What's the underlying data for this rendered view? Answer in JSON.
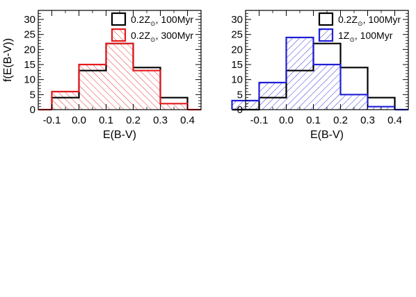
{
  "chart_data": [
    {
      "type": "bar",
      "subtype": "step-histogram",
      "xlabel": "E(B-V)",
      "ylabel": "f(E(B-V))",
      "xlim": [
        -0.15,
        0.45
      ],
      "ylim": [
        0,
        33
      ],
      "x_ticks": [
        "-0.1",
        "0.0",
        "0.1",
        "0.2",
        "0.3",
        "0.4"
      ],
      "y_ticks": [
        "0",
        "5",
        "10",
        "15",
        "20",
        "25",
        "30"
      ],
      "bin_edges": [
        -0.1,
        0.0,
        0.1,
        0.2,
        0.3,
        0.4
      ],
      "legend_position": "top-right",
      "series": [
        {
          "name": "0.2Z⊙, 100Myr",
          "legend_main": "0.2Z",
          "legend_sub": "⊙",
          "legend_rest": ", 100Myr",
          "color": "#000000",
          "hatched": false,
          "values": [
            4,
            13,
            22,
            14,
            4
          ]
        },
        {
          "name": "0.2Z⊙, 300Myr",
          "legend_main": "0.2Z",
          "legend_sub": "⊙",
          "legend_rest": ", 300Myr",
          "color": "#e41a1c",
          "hatched": true,
          "hatch": "forward",
          "values": [
            6,
            15,
            22,
            13,
            2
          ]
        }
      ]
    },
    {
      "type": "bar",
      "subtype": "step-histogram",
      "xlabel": "E(B-V)",
      "ylabel": "",
      "xlim": [
        -0.15,
        0.45
      ],
      "ylim": [
        0,
        33
      ],
      "x_ticks": [
        "-0.1",
        "0.0",
        "0.1",
        "0.2",
        "0.3",
        "0.4"
      ],
      "y_ticks": [
        "0",
        "5",
        "10",
        "15",
        "20",
        "25",
        "30"
      ],
      "bin_edges": [
        -0.2,
        -0.1,
        0.0,
        0.1,
        0.2,
        0.3,
        0.4
      ],
      "legend_position": "top-right",
      "series": [
        {
          "name": "0.2Z⊙, 100Myr",
          "legend_main": "0.2Z",
          "legend_sub": "⊙",
          "legend_rest": ", 100Myr",
          "color": "#000000",
          "hatched": false,
          "values": [
            0,
            4,
            13,
            22,
            14,
            4
          ]
        },
        {
          "name": "1Z⊙, 100Myr",
          "legend_main": "1Z",
          "legend_sub": "⊙",
          "legend_rest": ", 100Myr",
          "color": "#1f1fd6",
          "hatched": true,
          "hatch": "backward",
          "values": [
            3,
            9,
            24,
            15,
            5,
            1
          ]
        }
      ]
    }
  ]
}
